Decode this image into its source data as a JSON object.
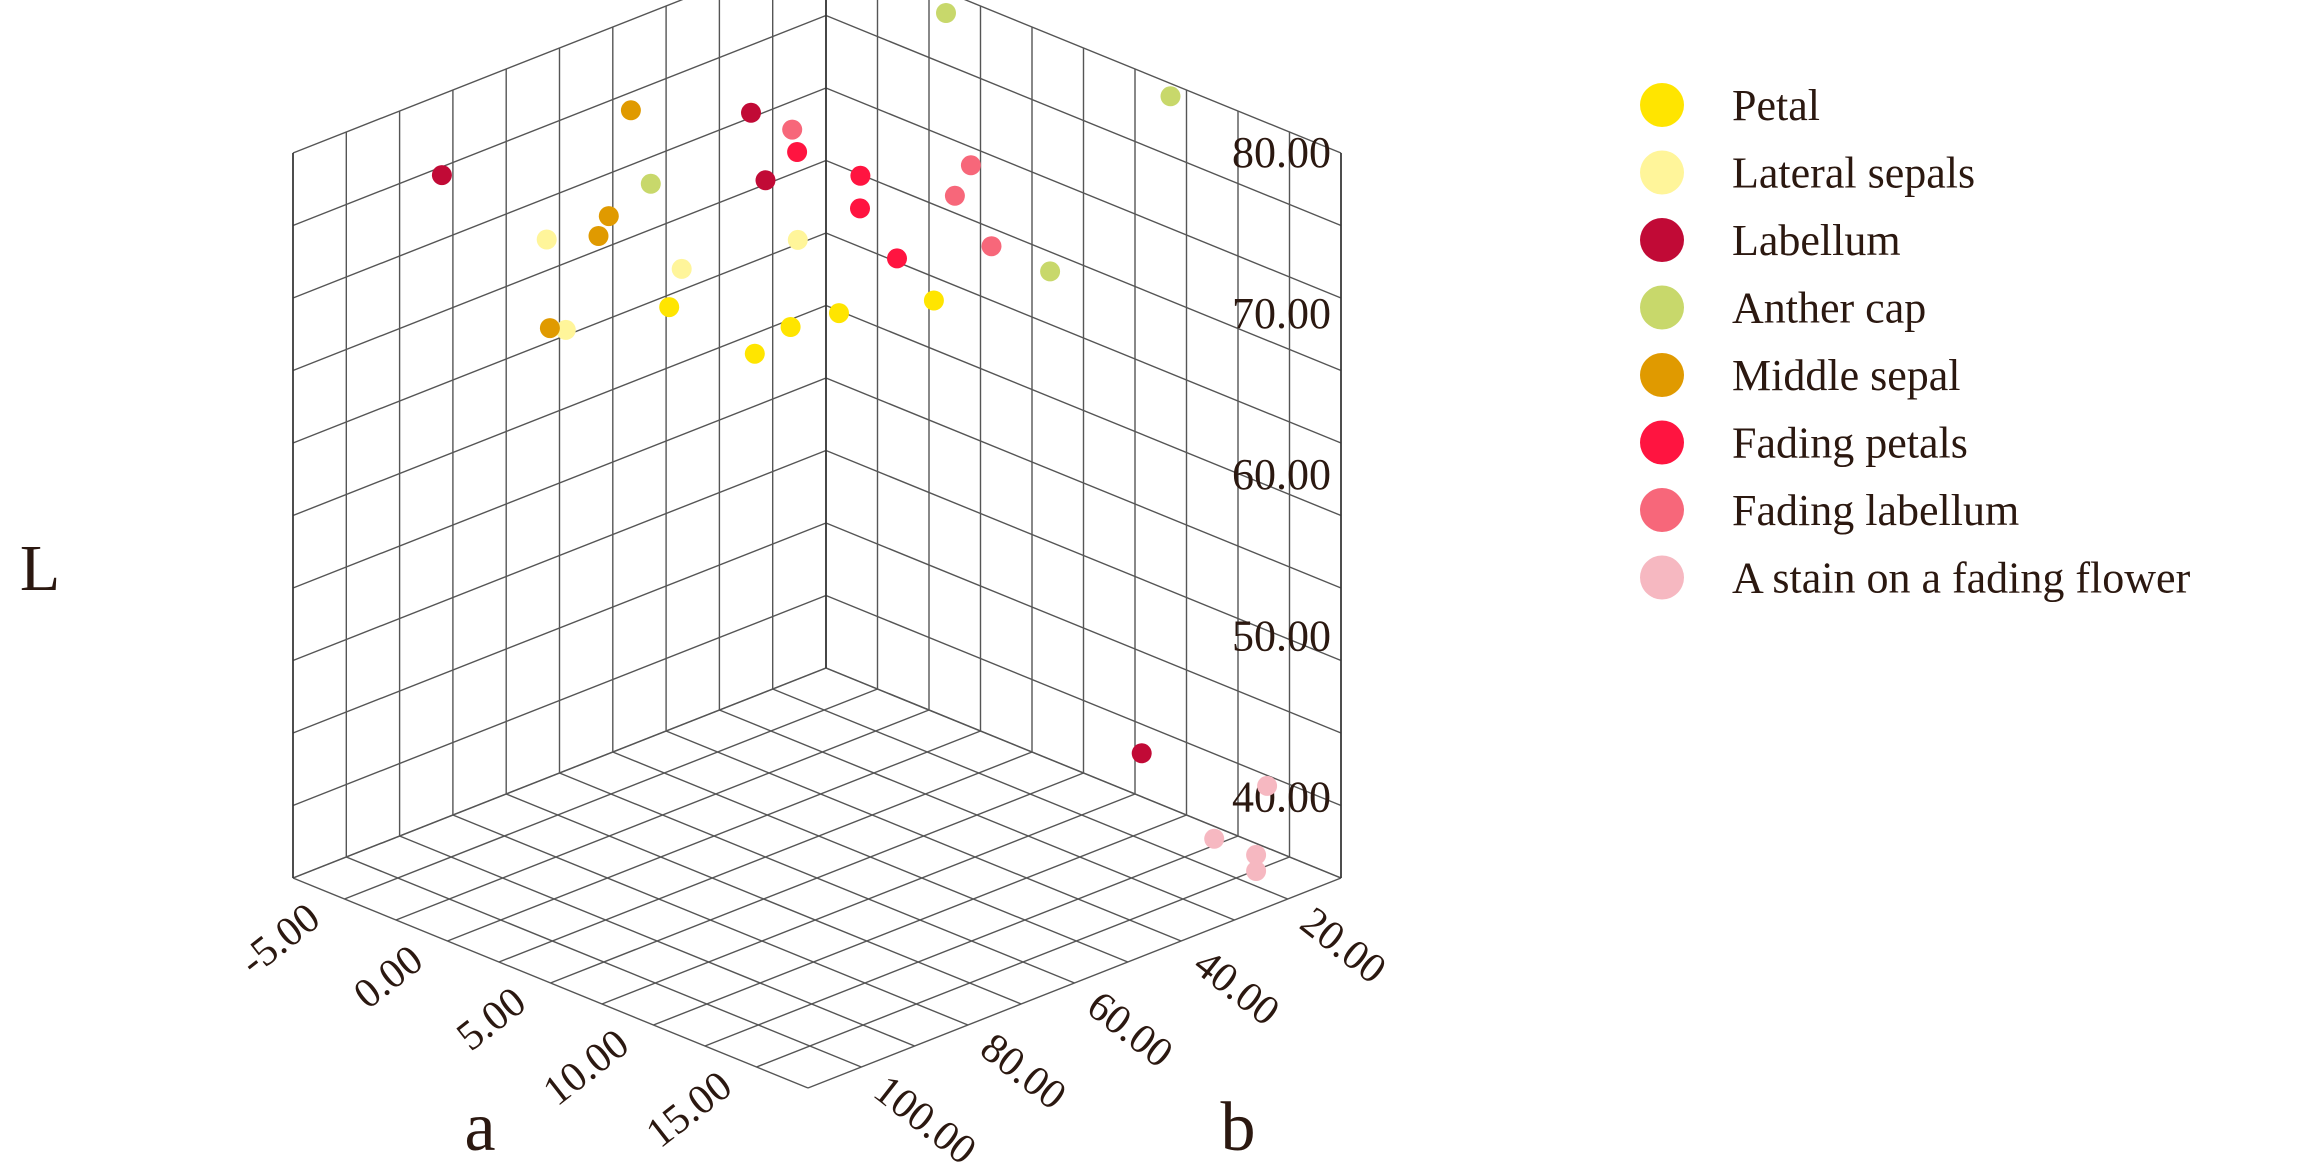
{
  "chart_data": {
    "type": "scatter",
    "dimensions": 3,
    "axes": {
      "x": {
        "label": "a",
        "range": [
          -7.5,
          17.5
        ],
        "ticks": [
          "-5.00",
          "0.00",
          "5.00",
          "10.00",
          "15.00"
        ],
        "tick_values": [
          -5,
          0,
          5,
          10,
          15
        ]
      },
      "y": {
        "label": "b",
        "range": [
          10,
          110
        ],
        "ticks": [
          "20.00",
          "40.00",
          "60.00",
          "80.00",
          "100.00"
        ],
        "tick_values": [
          20,
          40,
          60,
          80,
          100
        ]
      },
      "z": {
        "label": "L",
        "range": [
          35,
          80
        ],
        "ticks": [
          "40.00",
          "50.00",
          "60.00",
          "70.00",
          "80.00"
        ],
        "tick_values": [
          40,
          50,
          60,
          70,
          80
        ]
      }
    },
    "grid": true,
    "legend_position": "top-right",
    "series": [
      {
        "name": "Petal",
        "color": "#FFE500",
        "points": [
          {
            "a": 2.5,
            "b": 62,
            "L": 66.5
          },
          {
            "a": 3.2,
            "b": 58,
            "L": 68.0
          },
          {
            "a": 4.0,
            "b": 52,
            "L": 68.5
          },
          {
            "a": 5.5,
            "b": 40,
            "L": 68.5
          },
          {
            "a": 3.0,
            "b": 80,
            "L": 72.0
          }
        ]
      },
      {
        "name": "Lateral sepals",
        "color": "#FFF59A",
        "points": [
          {
            "a": -4.5,
            "b": 74,
            "L": 71.5
          },
          {
            "a": -1.5,
            "b": 82,
            "L": 68.5
          },
          {
            "a": 0.5,
            "b": 68,
            "L": 71.5
          },
          {
            "a": 2.0,
            "b": 52,
            "L": 72.0
          }
        ]
      },
      {
        "name": "Labellum",
        "color": "#C10A36",
        "points": [
          {
            "a": -7.0,
            "b": 84,
            "L": 75.5
          },
          {
            "a": 0.5,
            "b": 55,
            "L": 79.5
          },
          {
            "a": 2.5,
            "b": 60,
            "L": 77.0
          },
          {
            "a": 13.0,
            "b": 30,
            "L": 43.0
          }
        ]
      },
      {
        "name": "Anther cap",
        "color": "#C8D86B",
        "points": [
          {
            "a": 3.5,
            "b": 30,
            "L": 84.0
          },
          {
            "a": 10.0,
            "b": 13,
            "L": 80.0
          },
          {
            "a": 7.0,
            "b": 24,
            "L": 69.0
          },
          {
            "a": -1.0,
            "b": 68,
            "L": 76.0
          }
        ]
      },
      {
        "name": "Middle sepal",
        "color": "#E09A00",
        "points": [
          {
            "a": -3.0,
            "b": 64,
            "L": 79.0
          },
          {
            "a": -2.5,
            "b": 72,
            "L": 72.5
          },
          {
            "a": -2.0,
            "b": 72,
            "L": 74.0
          },
          {
            "a": -1.5,
            "b": 85,
            "L": 69.0
          }
        ]
      },
      {
        "name": "Fading petals",
        "color": "#FF1440",
        "points": [
          {
            "a": 3.0,
            "b": 56,
            "L": 78.5
          },
          {
            "a": 4.0,
            "b": 48,
            "L": 76.5
          },
          {
            "a": 4.5,
            "b": 50,
            "L": 75.0
          },
          {
            "a": 5.0,
            "b": 45,
            "L": 71.5
          }
        ]
      },
      {
        "name": "Fading labellum",
        "color": "#F7677A",
        "points": [
          {
            "a": 2.5,
            "b": 55,
            "L": 79.5
          },
          {
            "a": 6.0,
            "b": 35,
            "L": 76.5
          },
          {
            "a": 6.0,
            "b": 38,
            "L": 75.0
          },
          {
            "a": 7.0,
            "b": 35,
            "L": 72.0
          }
        ]
      },
      {
        "name": "A stain on a fading flower",
        "color": "#F6B8C1",
        "points": [
          {
            "a": 16.5,
            "b": 20,
            "L": 41.5
          },
          {
            "a": 16.0,
            "b": 28,
            "L": 39.0
          },
          {
            "a": 17.0,
            "b": 24,
            "L": 38.0
          },
          {
            "a": 17.0,
            "b": 24,
            "L": 37.0
          }
        ]
      }
    ]
  }
}
